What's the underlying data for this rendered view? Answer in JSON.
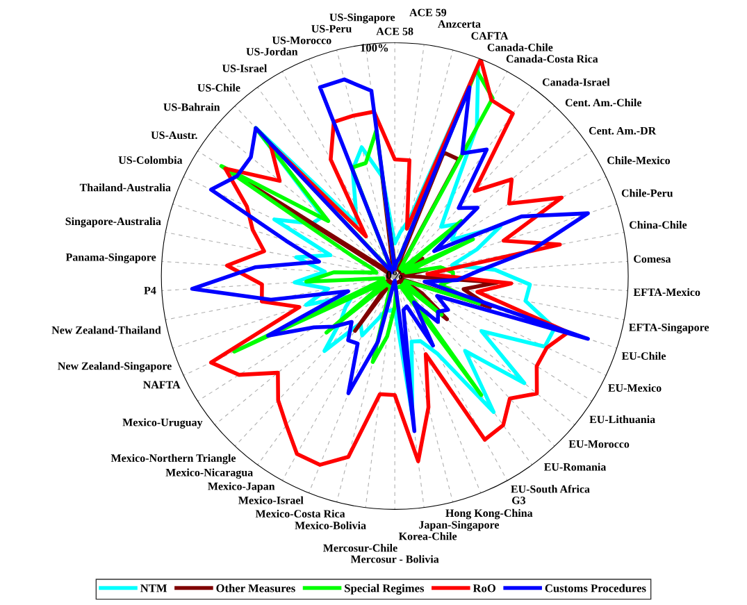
{
  "chart_data": {
    "type": "radar",
    "categories": [
      "ACE 58",
      "ACE 59",
      "Anzcerta",
      "CAFTA",
      "Canada-Chile",
      "Canada-Costa Rica",
      "Canada-Israel",
      "Cent. Am.-Chile",
      "Cent. Am.-DR",
      "Chile-Mexico",
      "Chile-Peru",
      "China-Chile",
      "Comesa",
      "EFTA-Mexico",
      "EFTA-Singapore",
      "EU-Chile",
      "EU-Mexico",
      "EU-Lithuania",
      "EU-Morocco",
      "EU-Romania",
      "EU-South Africa",
      "G3",
      "Hong Kong-China",
      "Japan-Singapore",
      "Korea-Chile",
      "Mercosur - Bolivia",
      "Mercosur-Chile",
      "Mexico-Bolivia",
      "Mexico-Costa Rica",
      "Mexico-Israel",
      "Mexico-Japan",
      "Mexico-Nicaragua",
      "Mexico-Northern Triangle",
      "Mexico-Uruguay",
      "NAFTA",
      "New Zealand-Singapore",
      "New Zealand-Thailand",
      "P4",
      "Panama-Singapore",
      "Singapore-Australia",
      "Thailand-Australia",
      "US-Colombia",
      "US-Austr.",
      "US-Bahrain",
      "US-Chile",
      "US-Israel",
      "US-Jordan",
      "US-Morocco",
      "US-Peru",
      "US-Singapore"
    ],
    "ylim": [
      0,
      100
    ],
    "yticks": [
      {
        "value": 0,
        "label": "0%"
      },
      {
        "value": 100,
        "label": "100%"
      }
    ],
    "grid": "x",
    "legend": "bottom",
    "line_style": "solid",
    "marker": "none",
    "series": [
      {
        "name": "NTM",
        "color": "#00ffff",
        "values": [
          14,
          19,
          25,
          97,
          73,
          41,
          29,
          35,
          29,
          50,
          37,
          25,
          43,
          58,
          57,
          72,
          71,
          44,
          72,
          44,
          72,
          38,
          30,
          29,
          60,
          14,
          15,
          15,
          20,
          29,
          25,
          44,
          30,
          25,
          20,
          40,
          29,
          43,
          30,
          43,
          29,
          57,
          42,
          40,
          87,
          28,
          35,
          49,
          57,
          43
        ]
      },
      {
        "name": "Other Measures",
        "color": "#800000",
        "values": [
          5,
          3,
          3,
          57,
          57,
          3,
          3,
          3,
          14,
          3,
          3,
          14,
          3,
          44,
          30,
          43,
          3,
          14,
          29,
          3,
          3,
          3,
          3,
          3,
          3,
          3,
          3,
          3,
          3,
          3,
          29,
          3,
          29,
          3,
          3,
          3,
          3,
          3,
          3,
          3,
          3,
          3,
          80,
          3,
          3,
          3,
          3,
          3,
          3,
          43
        ]
      },
      {
        "name": "Special Regimes",
        "color": "#00ff00",
        "values": [
          3,
          5,
          8,
          95,
          87,
          4,
          4,
          37,
          4,
          37,
          5,
          20,
          25,
          25,
          20,
          38,
          5,
          5,
          26,
          5,
          63,
          5,
          5,
          5,
          5,
          13,
          26,
          38,
          5,
          5,
          5,
          5,
          38,
          5,
          76,
          5,
          5,
          38,
          26,
          8,
          10,
          20,
          88,
          37,
          87,
          3,
          3,
          50,
          50,
          63
        ]
      },
      {
        "name": "RoO",
        "color": "#ff0000",
        "values": [
          50,
          50,
          21,
          100,
          86,
          86,
          50,
          65,
          58,
          79,
          49,
          72,
          14,
          50,
          36,
          78,
          72,
          72,
          79,
          72,
          79,
          80,
          36,
          58,
          80,
          51,
          51,
          80,
          87,
          87,
          79,
          73,
          65,
          79,
          87,
          43,
          58,
          57,
          72,
          57,
          64,
          70,
          86,
          64,
          78,
          21,
          57,
          71,
          71,
          71
        ]
      },
      {
        "name": "Customs Procedures",
        "color": "#0000ff",
        "values": [
          3,
          6,
          8,
          87,
          60,
          67,
          40,
          46,
          20,
          60,
          87,
          60,
          36,
          27,
          13,
          87,
          20,
          27,
          24,
          27,
          14,
          34,
          14,
          15,
          67,
          2,
          3,
          29,
          54,
          33,
          34,
          27,
          34,
          41,
          60,
          21,
          54,
          87,
          60,
          33,
          49,
          87,
          80,
          80,
          87,
          2,
          2,
          87,
          87,
          80
        ]
      }
    ]
  }
}
